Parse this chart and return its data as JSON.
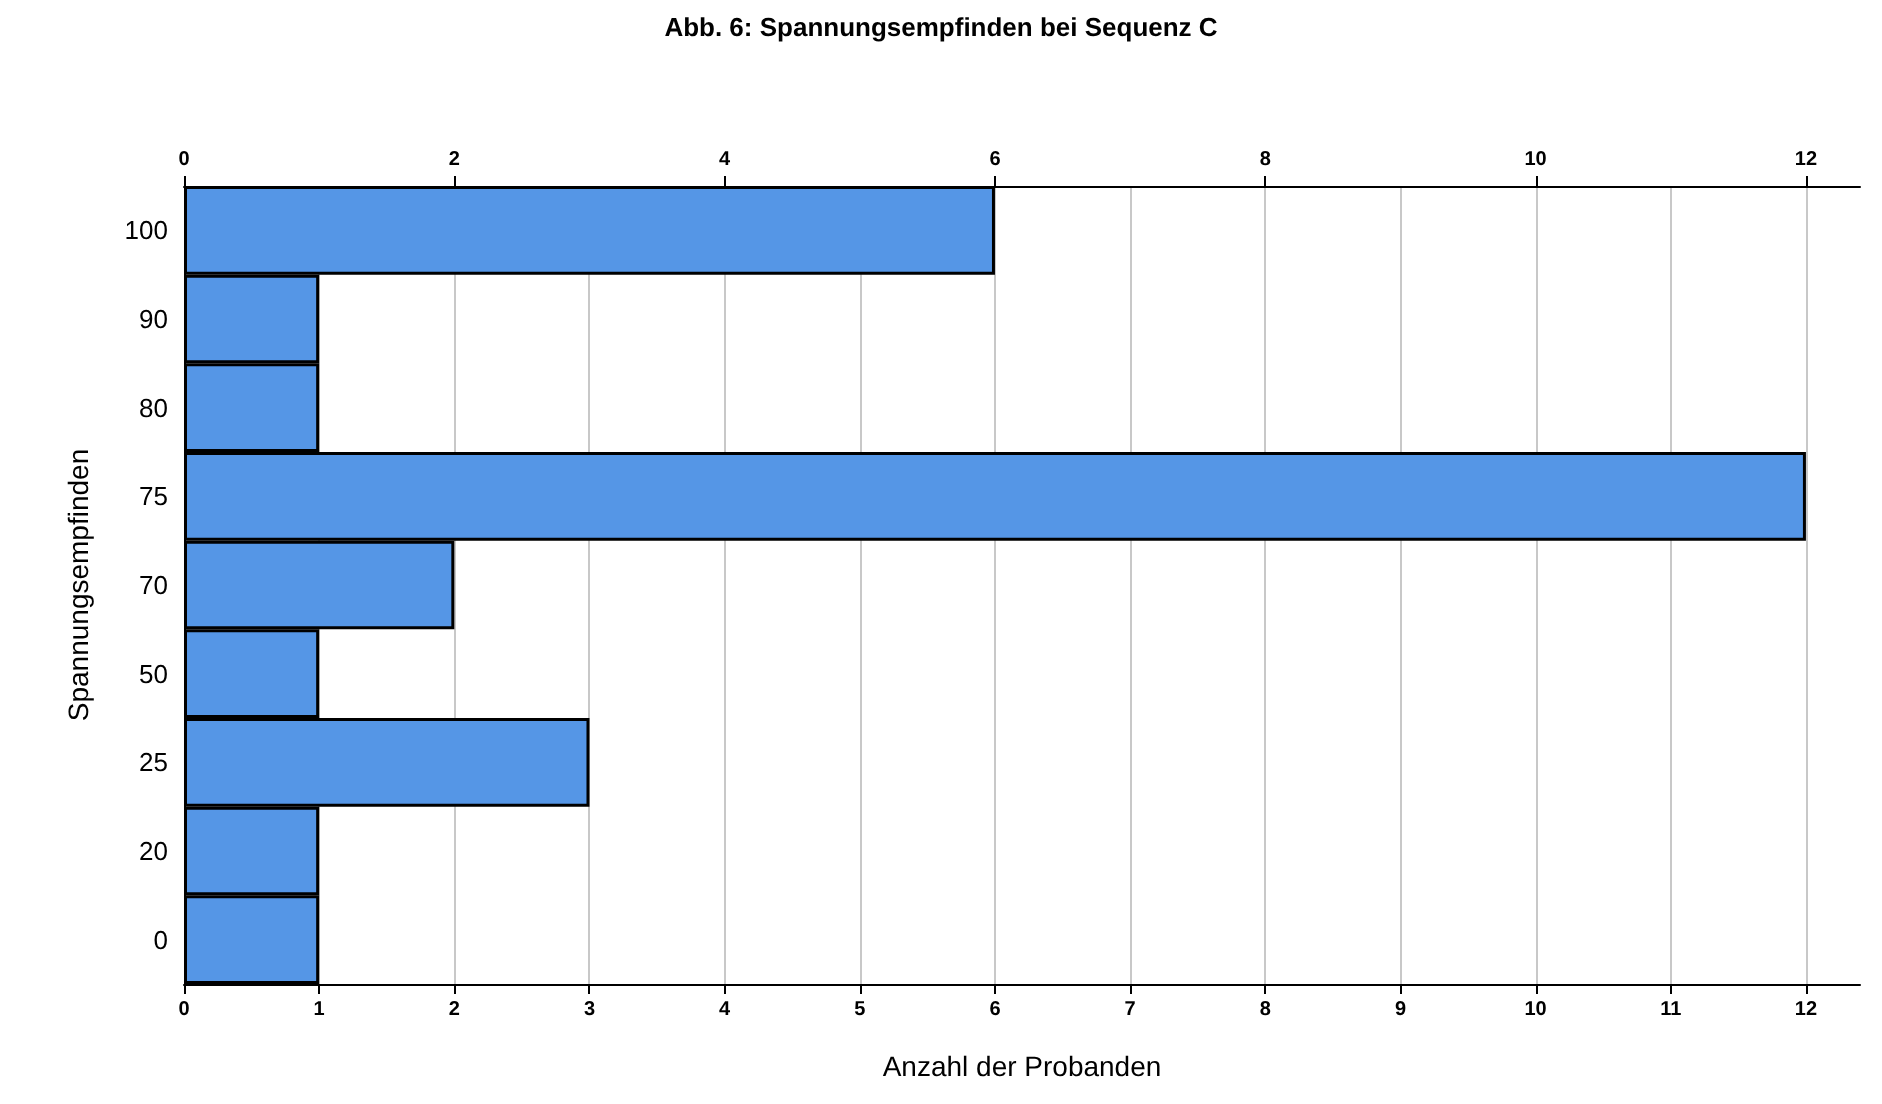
{
  "chart_data": {
    "type": "bar",
    "orientation": "horizontal",
    "title": "Abb. 6: Spannungsempfinden bei Sequenz C",
    "xlabel": "Anzahl der Probanden",
    "ylabel": "Spannungsempfinden",
    "categories": [
      "100",
      "90",
      "80",
      "75",
      "70",
      "50",
      "25",
      "20",
      "0"
    ],
    "values": [
      6,
      1,
      1,
      12,
      2,
      1,
      3,
      1,
      1
    ],
    "color": "#5596e6",
    "xlim": [
      0,
      12.4
    ],
    "xticks": [
      0,
      1,
      2,
      3,
      4,
      5,
      6,
      7,
      8,
      9,
      10,
      11,
      12
    ],
    "x2lim": [
      0,
      12.4
    ],
    "x2ticks": [
      0,
      2,
      4,
      6,
      8,
      10,
      12
    ],
    "grid": "x"
  }
}
